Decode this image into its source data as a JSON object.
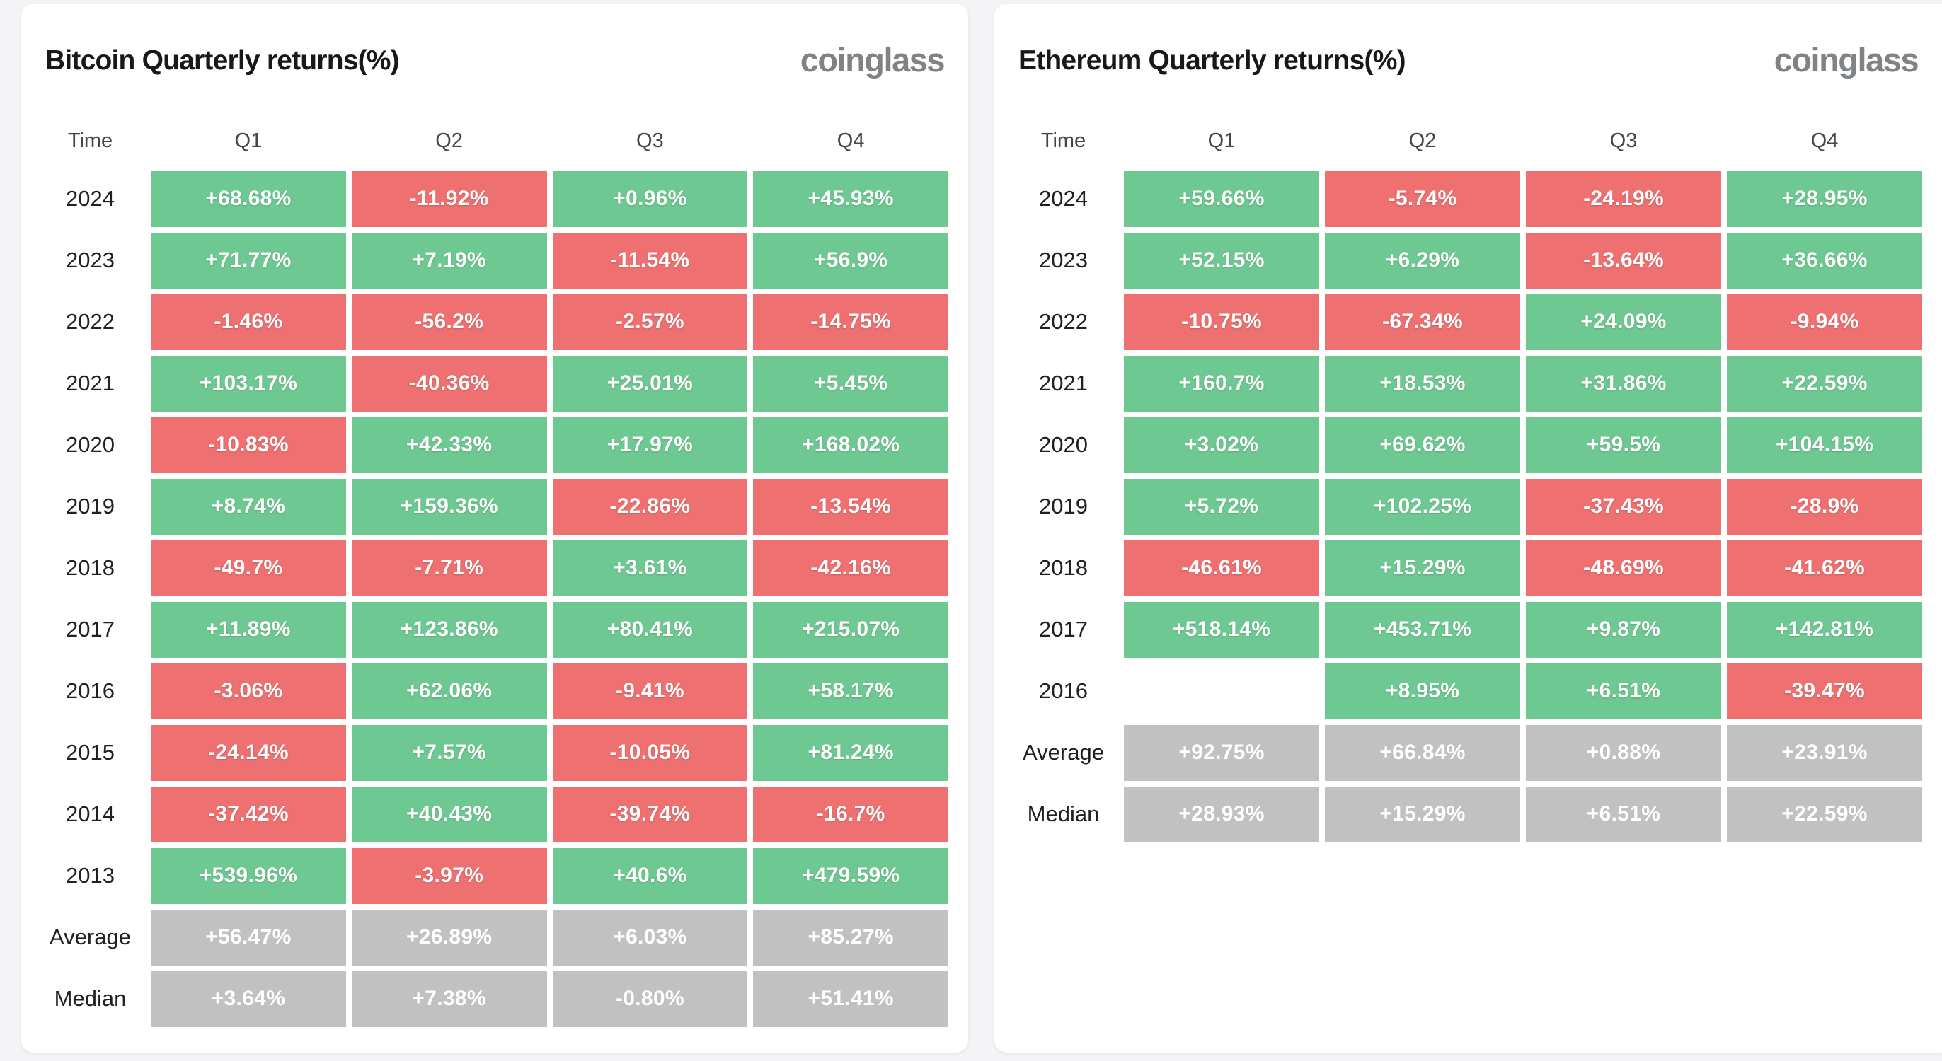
{
  "page": {
    "background": "#f4f4f6"
  },
  "colors": {
    "positive_cell": "#6ec892",
    "negative_cell": "#ee7070",
    "summary_cell": "#c1c1c2",
    "cell_text": "#ffffff",
    "title_text": "#17181a",
    "logo_text": "#808386"
  },
  "tables": [
    {
      "title": "Bitcoin Quarterly returns(%)",
      "logo": "coinglass",
      "columns": [
        "Time",
        "Q1",
        "Q2",
        "Q3",
        "Q4"
      ],
      "rows": [
        {
          "label": "2024",
          "cells": [
            {
              "text": "+68.68%",
              "type": "positive"
            },
            {
              "text": "-11.92%",
              "type": "negative"
            },
            {
              "text": "+0.96%",
              "type": "positive"
            },
            {
              "text": "+45.93%",
              "type": "positive"
            }
          ]
        },
        {
          "label": "2023",
          "cells": [
            {
              "text": "+71.77%",
              "type": "positive"
            },
            {
              "text": "+7.19%",
              "type": "positive"
            },
            {
              "text": "-11.54%",
              "type": "negative"
            },
            {
              "text": "+56.9%",
              "type": "positive"
            }
          ]
        },
        {
          "label": "2022",
          "cells": [
            {
              "text": "-1.46%",
              "type": "negative"
            },
            {
              "text": "-56.2%",
              "type": "negative"
            },
            {
              "text": "-2.57%",
              "type": "negative"
            },
            {
              "text": "-14.75%",
              "type": "negative"
            }
          ]
        },
        {
          "label": "2021",
          "cells": [
            {
              "text": "+103.17%",
              "type": "positive"
            },
            {
              "text": "-40.36%",
              "type": "negative"
            },
            {
              "text": "+25.01%",
              "type": "positive"
            },
            {
              "text": "+5.45%",
              "type": "positive"
            }
          ]
        },
        {
          "label": "2020",
          "cells": [
            {
              "text": "-10.83%",
              "type": "negative"
            },
            {
              "text": "+42.33%",
              "type": "positive"
            },
            {
              "text": "+17.97%",
              "type": "positive"
            },
            {
              "text": "+168.02%",
              "type": "positive"
            }
          ]
        },
        {
          "label": "2019",
          "cells": [
            {
              "text": "+8.74%",
              "type": "positive"
            },
            {
              "text": "+159.36%",
              "type": "positive"
            },
            {
              "text": "-22.86%",
              "type": "negative"
            },
            {
              "text": "-13.54%",
              "type": "negative"
            }
          ]
        },
        {
          "label": "2018",
          "cells": [
            {
              "text": "-49.7%",
              "type": "negative"
            },
            {
              "text": "-7.71%",
              "type": "negative"
            },
            {
              "text": "+3.61%",
              "type": "positive"
            },
            {
              "text": "-42.16%",
              "type": "negative"
            }
          ]
        },
        {
          "label": "2017",
          "cells": [
            {
              "text": "+11.89%",
              "type": "positive"
            },
            {
              "text": "+123.86%",
              "type": "positive"
            },
            {
              "text": "+80.41%",
              "type": "positive"
            },
            {
              "text": "+215.07%",
              "type": "positive"
            }
          ]
        },
        {
          "label": "2016",
          "cells": [
            {
              "text": "-3.06%",
              "type": "negative"
            },
            {
              "text": "+62.06%",
              "type": "positive"
            },
            {
              "text": "-9.41%",
              "type": "negative"
            },
            {
              "text": "+58.17%",
              "type": "positive"
            }
          ]
        },
        {
          "label": "2015",
          "cells": [
            {
              "text": "-24.14%",
              "type": "negative"
            },
            {
              "text": "+7.57%",
              "type": "positive"
            },
            {
              "text": "-10.05%",
              "type": "negative"
            },
            {
              "text": "+81.24%",
              "type": "positive"
            }
          ]
        },
        {
          "label": "2014",
          "cells": [
            {
              "text": "-37.42%",
              "type": "negative"
            },
            {
              "text": "+40.43%",
              "type": "positive"
            },
            {
              "text": "-39.74%",
              "type": "negative"
            },
            {
              "text": "-16.7%",
              "type": "negative"
            }
          ]
        },
        {
          "label": "2013",
          "cells": [
            {
              "text": "+539.96%",
              "type": "positive"
            },
            {
              "text": "-3.97%",
              "type": "negative"
            },
            {
              "text": "+40.6%",
              "type": "positive"
            },
            {
              "text": "+479.59%",
              "type": "positive"
            }
          ]
        },
        {
          "label": "Average",
          "cells": [
            {
              "text": "+56.47%",
              "type": "neutral"
            },
            {
              "text": "+26.89%",
              "type": "neutral"
            },
            {
              "text": "+6.03%",
              "type": "neutral"
            },
            {
              "text": "+85.27%",
              "type": "neutral"
            }
          ]
        },
        {
          "label": "Median",
          "cells": [
            {
              "text": "+3.64%",
              "type": "neutral"
            },
            {
              "text": "+7.38%",
              "type": "neutral"
            },
            {
              "text": "-0.80%",
              "type": "neutral"
            },
            {
              "text": "+51.41%",
              "type": "neutral"
            }
          ]
        }
      ]
    },
    {
      "title": "Ethereum Quarterly returns(%)",
      "logo": "coinglass",
      "columns": [
        "Time",
        "Q1",
        "Q2",
        "Q3",
        "Q4"
      ],
      "rows": [
        {
          "label": "2024",
          "cells": [
            {
              "text": "+59.66%",
              "type": "positive"
            },
            {
              "text": "-5.74%",
              "type": "negative"
            },
            {
              "text": "-24.19%",
              "type": "negative"
            },
            {
              "text": "+28.95%",
              "type": "positive"
            }
          ]
        },
        {
          "label": "2023",
          "cells": [
            {
              "text": "+52.15%",
              "type": "positive"
            },
            {
              "text": "+6.29%",
              "type": "positive"
            },
            {
              "text": "-13.64%",
              "type": "negative"
            },
            {
              "text": "+36.66%",
              "type": "positive"
            }
          ]
        },
        {
          "label": "2022",
          "cells": [
            {
              "text": "-10.75%",
              "type": "negative"
            },
            {
              "text": "-67.34%",
              "type": "negative"
            },
            {
              "text": "+24.09%",
              "type": "positive"
            },
            {
              "text": "-9.94%",
              "type": "negative"
            }
          ]
        },
        {
          "label": "2021",
          "cells": [
            {
              "text": "+160.7%",
              "type": "positive"
            },
            {
              "text": "+18.53%",
              "type": "positive"
            },
            {
              "text": "+31.86%",
              "type": "positive"
            },
            {
              "text": "+22.59%",
              "type": "positive"
            }
          ]
        },
        {
          "label": "2020",
          "cells": [
            {
              "text": "+3.02%",
              "type": "positive"
            },
            {
              "text": "+69.62%",
              "type": "positive"
            },
            {
              "text": "+59.5%",
              "type": "positive"
            },
            {
              "text": "+104.15%",
              "type": "positive"
            }
          ]
        },
        {
          "label": "2019",
          "cells": [
            {
              "text": "+5.72%",
              "type": "positive"
            },
            {
              "text": "+102.25%",
              "type": "positive"
            },
            {
              "text": "-37.43%",
              "type": "negative"
            },
            {
              "text": "-28.9%",
              "type": "negative"
            }
          ]
        },
        {
          "label": "2018",
          "cells": [
            {
              "text": "-46.61%",
              "type": "negative"
            },
            {
              "text": "+15.29%",
              "type": "positive"
            },
            {
              "text": "-48.69%",
              "type": "negative"
            },
            {
              "text": "-41.62%",
              "type": "negative"
            }
          ]
        },
        {
          "label": "2017",
          "cells": [
            {
              "text": "+518.14%",
              "type": "positive"
            },
            {
              "text": "+453.71%",
              "type": "positive"
            },
            {
              "text": "+9.87%",
              "type": "positive"
            },
            {
              "text": "+142.81%",
              "type": "positive"
            }
          ]
        },
        {
          "label": "2016",
          "cells": [
            {
              "text": "",
              "type": "empty"
            },
            {
              "text": "+8.95%",
              "type": "positive"
            },
            {
              "text": "+6.51%",
              "type": "positive"
            },
            {
              "text": "-39.47%",
              "type": "negative"
            }
          ]
        },
        {
          "label": "Average",
          "cells": [
            {
              "text": "+92.75%",
              "type": "neutral"
            },
            {
              "text": "+66.84%",
              "type": "neutral"
            },
            {
              "text": "+0.88%",
              "type": "neutral"
            },
            {
              "text": "+23.91%",
              "type": "neutral"
            }
          ]
        },
        {
          "label": "Median",
          "cells": [
            {
              "text": "+28.93%",
              "type": "neutral"
            },
            {
              "text": "+15.29%",
              "type": "neutral"
            },
            {
              "text": "+6.51%",
              "type": "neutral"
            },
            {
              "text": "+22.59%",
              "type": "neutral"
            }
          ]
        }
      ]
    }
  ],
  "chart_data": [
    {
      "type": "table",
      "title": "Bitcoin Quarterly returns(%)",
      "columns": [
        "Q1",
        "Q2",
        "Q3",
        "Q4"
      ],
      "row_labels": [
        "2024",
        "2023",
        "2022",
        "2021",
        "2020",
        "2019",
        "2018",
        "2017",
        "2016",
        "2015",
        "2014",
        "2013",
        "Average",
        "Median"
      ],
      "values": [
        [
          68.68,
          -11.92,
          0.96,
          45.93
        ],
        [
          71.77,
          7.19,
          -11.54,
          56.9
        ],
        [
          -1.46,
          -56.2,
          -2.57,
          -14.75
        ],
        [
          103.17,
          -40.36,
          25.01,
          5.45
        ],
        [
          -10.83,
          42.33,
          17.97,
          168.02
        ],
        [
          8.74,
          159.36,
          -22.86,
          -13.54
        ],
        [
          -49.7,
          -7.71,
          3.61,
          -42.16
        ],
        [
          11.89,
          123.86,
          80.41,
          215.07
        ],
        [
          -3.06,
          62.06,
          -9.41,
          58.17
        ],
        [
          -24.14,
          7.57,
          -10.05,
          81.24
        ],
        [
          -37.42,
          40.43,
          -39.74,
          -16.7
        ],
        [
          539.96,
          -3.97,
          40.6,
          479.59
        ],
        [
          56.47,
          26.89,
          6.03,
          85.27
        ],
        [
          3.64,
          7.38,
          -0.8,
          51.41
        ]
      ],
      "legend_position": "none",
      "color_rule": "green=positive, red=negative, gray=Average/Median summary rows"
    },
    {
      "type": "table",
      "title": "Ethereum Quarterly returns(%)",
      "columns": [
        "Q1",
        "Q2",
        "Q3",
        "Q4"
      ],
      "row_labels": [
        "2024",
        "2023",
        "2022",
        "2021",
        "2020",
        "2019",
        "2018",
        "2017",
        "2016",
        "Average",
        "Median"
      ],
      "values": [
        [
          59.66,
          -5.74,
          -24.19,
          28.95
        ],
        [
          52.15,
          6.29,
          -13.64,
          36.66
        ],
        [
          -10.75,
          -67.34,
          24.09,
          -9.94
        ],
        [
          160.7,
          18.53,
          31.86,
          22.59
        ],
        [
          3.02,
          69.62,
          59.5,
          104.15
        ],
        [
          5.72,
          102.25,
          -37.43,
          -28.9
        ],
        [
          -46.61,
          15.29,
          -48.69,
          -41.62
        ],
        [
          518.14,
          453.71,
          9.87,
          142.81
        ],
        [
          null,
          8.95,
          6.51,
          -39.47
        ],
        [
          92.75,
          66.84,
          0.88,
          23.91
        ],
        [
          28.93,
          15.29,
          6.51,
          22.59
        ]
      ],
      "legend_position": "none",
      "color_rule": "green=positive, red=negative, gray=Average/Median summary rows"
    }
  ]
}
